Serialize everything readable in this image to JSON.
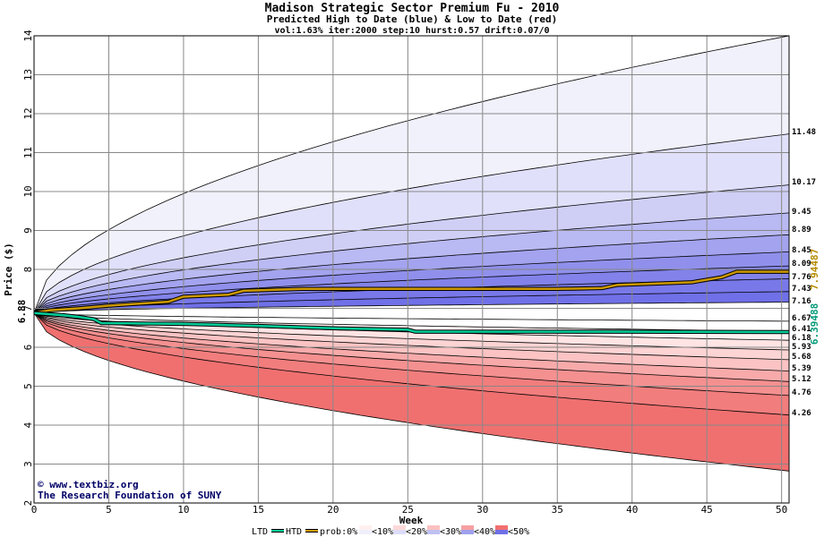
{
  "chart_data": {
    "type": "area",
    "title": "Madison Strategic Sector Premium Fu - 2010",
    "subtitle": "Predicted High to Date (blue) &  Low to Date (red)",
    "params": "vol:1.63% iter:2000 step:10 hurst:0.57 drift:0.07/0",
    "xlabel": "Week",
    "ylabel": "Price ($)",
    "xlim": [
      0,
      50.5
    ],
    "ylim": [
      2,
      14
    ],
    "x_ticks": [
      "0",
      "5",
      "10",
      "15",
      "20",
      "25",
      "30",
      "35",
      "40",
      "45",
      "50"
    ],
    "y_ticks": [
      "2",
      "3",
      "4",
      "5",
      "6",
      "7",
      "8",
      "9",
      "10",
      "11",
      "12",
      "13",
      "14"
    ],
    "grid": true,
    "start_price": 6.88,
    "start_label": "6.88",
    "end_week": 50.5,
    "upper_bands": [
      {
        "level": "0%",
        "end": 14.0,
        "label": ""
      },
      {
        "level": "10%",
        "end": 11.48,
        "label": "11.48"
      },
      {
        "level": "20%",
        "end": 10.17,
        "label": "10.17"
      },
      {
        "level": "30%",
        "end": 9.45,
        "label": "9.45"
      },
      {
        "level": "40%",
        "end": 8.89,
        "label": "8.89"
      },
      {
        "level": "50%",
        "end": 8.45,
        "label": "8.45"
      },
      {
        "level": "60%",
        "end": 8.09,
        "label": "8.09"
      },
      {
        "level": "70%",
        "end": 7.76,
        "label": "7.76"
      },
      {
        "level": "80%",
        "end": 7.43,
        "label": "7.43"
      },
      {
        "level": "90%",
        "end": 7.16,
        "label": "7.16"
      }
    ],
    "lower_bands": [
      {
        "level": "90%",
        "end": 6.67,
        "label": "6.67"
      },
      {
        "level": "80%",
        "end": 6.41,
        "label": "6.41"
      },
      {
        "level": "70%",
        "end": 6.18,
        "label": "6.18"
      },
      {
        "level": "60%",
        "end": 5.93,
        "label": "5.93"
      },
      {
        "level": "50%",
        "end": 5.68,
        "label": "5.68"
      },
      {
        "level": "40%",
        "end": 5.39,
        "label": "5.39"
      },
      {
        "level": "30%",
        "end": 5.12,
        "label": "5.12"
      },
      {
        "level": "20%",
        "end": 4.76,
        "label": "4.76"
      },
      {
        "level": "10%",
        "end": 4.26,
        "label": "4.26"
      },
      {
        "level": "0%",
        "end": 2.82,
        "label": ""
      }
    ],
    "htd_series": {
      "name": "HTD",
      "end_label": "7.94487",
      "color": "#cc9900",
      "points": [
        [
          0,
          6.88
        ],
        [
          1,
          6.95
        ],
        [
          3,
          7.0
        ],
        [
          5,
          7.07
        ],
        [
          9,
          7.17
        ],
        [
          10,
          7.3
        ],
        [
          13,
          7.35
        ],
        [
          14,
          7.45
        ],
        [
          18,
          7.5
        ],
        [
          30,
          7.5
        ],
        [
          35,
          7.5
        ],
        [
          38,
          7.52
        ],
        [
          39,
          7.6
        ],
        [
          44,
          7.67
        ],
        [
          46,
          7.8
        ],
        [
          47,
          7.94
        ],
        [
          50.5,
          7.94
        ]
      ]
    },
    "ltd_series": {
      "name": "LTD",
      "end_label": "6.39488",
      "color": "#00cc99",
      "points": [
        [
          0,
          6.88
        ],
        [
          2,
          6.82
        ],
        [
          3,
          6.78
        ],
        [
          4,
          6.72
        ],
        [
          4.5,
          6.62
        ],
        [
          10,
          6.6
        ],
        [
          12,
          6.58
        ],
        [
          15,
          6.55
        ],
        [
          19,
          6.5
        ],
        [
          21,
          6.48
        ],
        [
          25,
          6.45
        ],
        [
          25.5,
          6.4
        ],
        [
          30,
          6.4
        ],
        [
          40,
          6.4
        ],
        [
          50.5,
          6.39
        ]
      ]
    },
    "legend": {
      "items": [
        "LTD",
        "HTD",
        "prob:0%",
        "<10%",
        "<20%",
        "<30%",
        "<40%",
        "<50%"
      ],
      "htd_color": "#cc9900",
      "ltd_color": "#00cc99"
    },
    "credit_lines": [
      "www.textbiz.org",
      "The Research Foundation of SUNY"
    ],
    "colors": {
      "upper": [
        "#f1f1fc",
        "#e0e0fa",
        "#cfcff6",
        "#b9b9f3",
        "#a3a3ef",
        "#9090ec",
        "#8282ea",
        "#7878e9",
        "#7070e8"
      ],
      "lower": [
        "#ffffff",
        "#fff3f3",
        "#ffe4e4",
        "#fdd4d4",
        "#fbc3c3",
        "#f8aaaa",
        "#f59090",
        "#f27d7d",
        "#f07070"
      ]
    }
  }
}
